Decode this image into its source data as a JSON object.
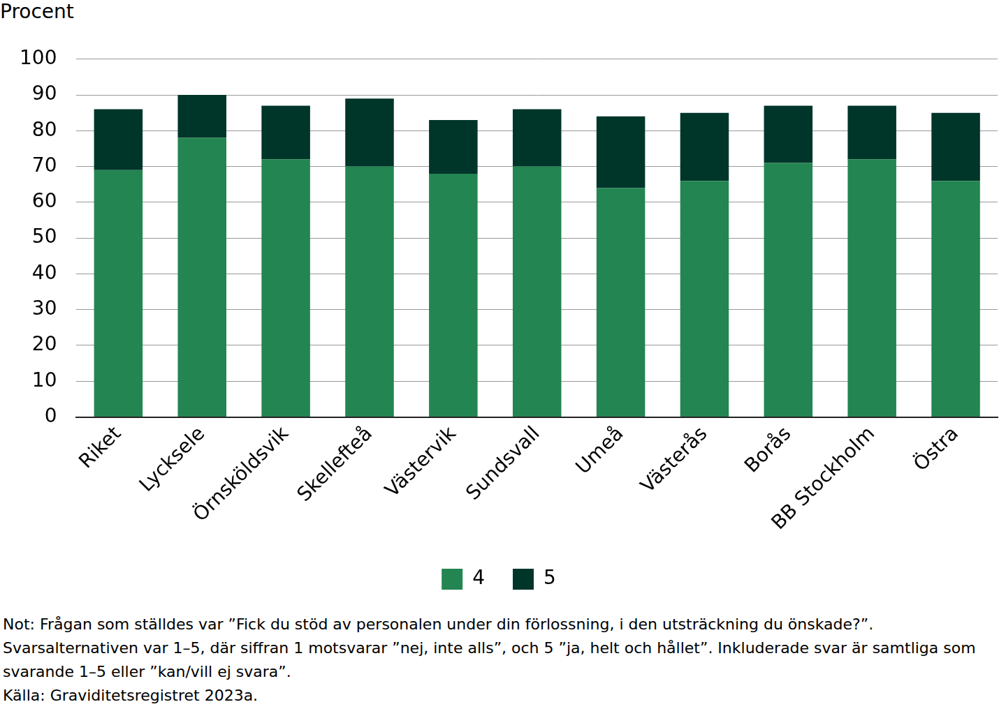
{
  "chart_data": {
    "type": "bar",
    "stacked": true,
    "ylabel": "Procent",
    "categories": [
      "Riket",
      "Lycksele",
      "Örnsköldsvik",
      "Skellefteå",
      "Västervik",
      "Sundsvall",
      "Umeå",
      "Västerås",
      "Borås",
      "BB Stockholm",
      "Östra"
    ],
    "series": [
      {
        "name": "4",
        "color": "#238551",
        "values": [
          69,
          78,
          72,
          70,
          68,
          70,
          64,
          66,
          71,
          72,
          66
        ]
      },
      {
        "name": "5",
        "color": "#00352a",
        "values": [
          17,
          12,
          15,
          19,
          15,
          16,
          20,
          19,
          16,
          15,
          19
        ]
      }
    ],
    "ylim": [
      0,
      100
    ],
    "yticks": [
      0,
      10,
      20,
      30,
      40,
      50,
      60,
      70,
      80,
      90,
      100
    ],
    "grid": true,
    "legend": "bottom",
    "note": "Not: Frågan som ställdes var ”Fick du stöd av personalen under din förlossning, i den utsträckning du önskade?”. Svarsalternativen var 1–5, där siffran 1 motsvarar ”nej, inte alls”, och 5 ”ja, helt och hållet”. Inkluderade svar är samtliga som svarande 1–5 eller ”kan/vill ej svara”.",
    "source": "Källa: Graviditetsregistret 2023a."
  }
}
